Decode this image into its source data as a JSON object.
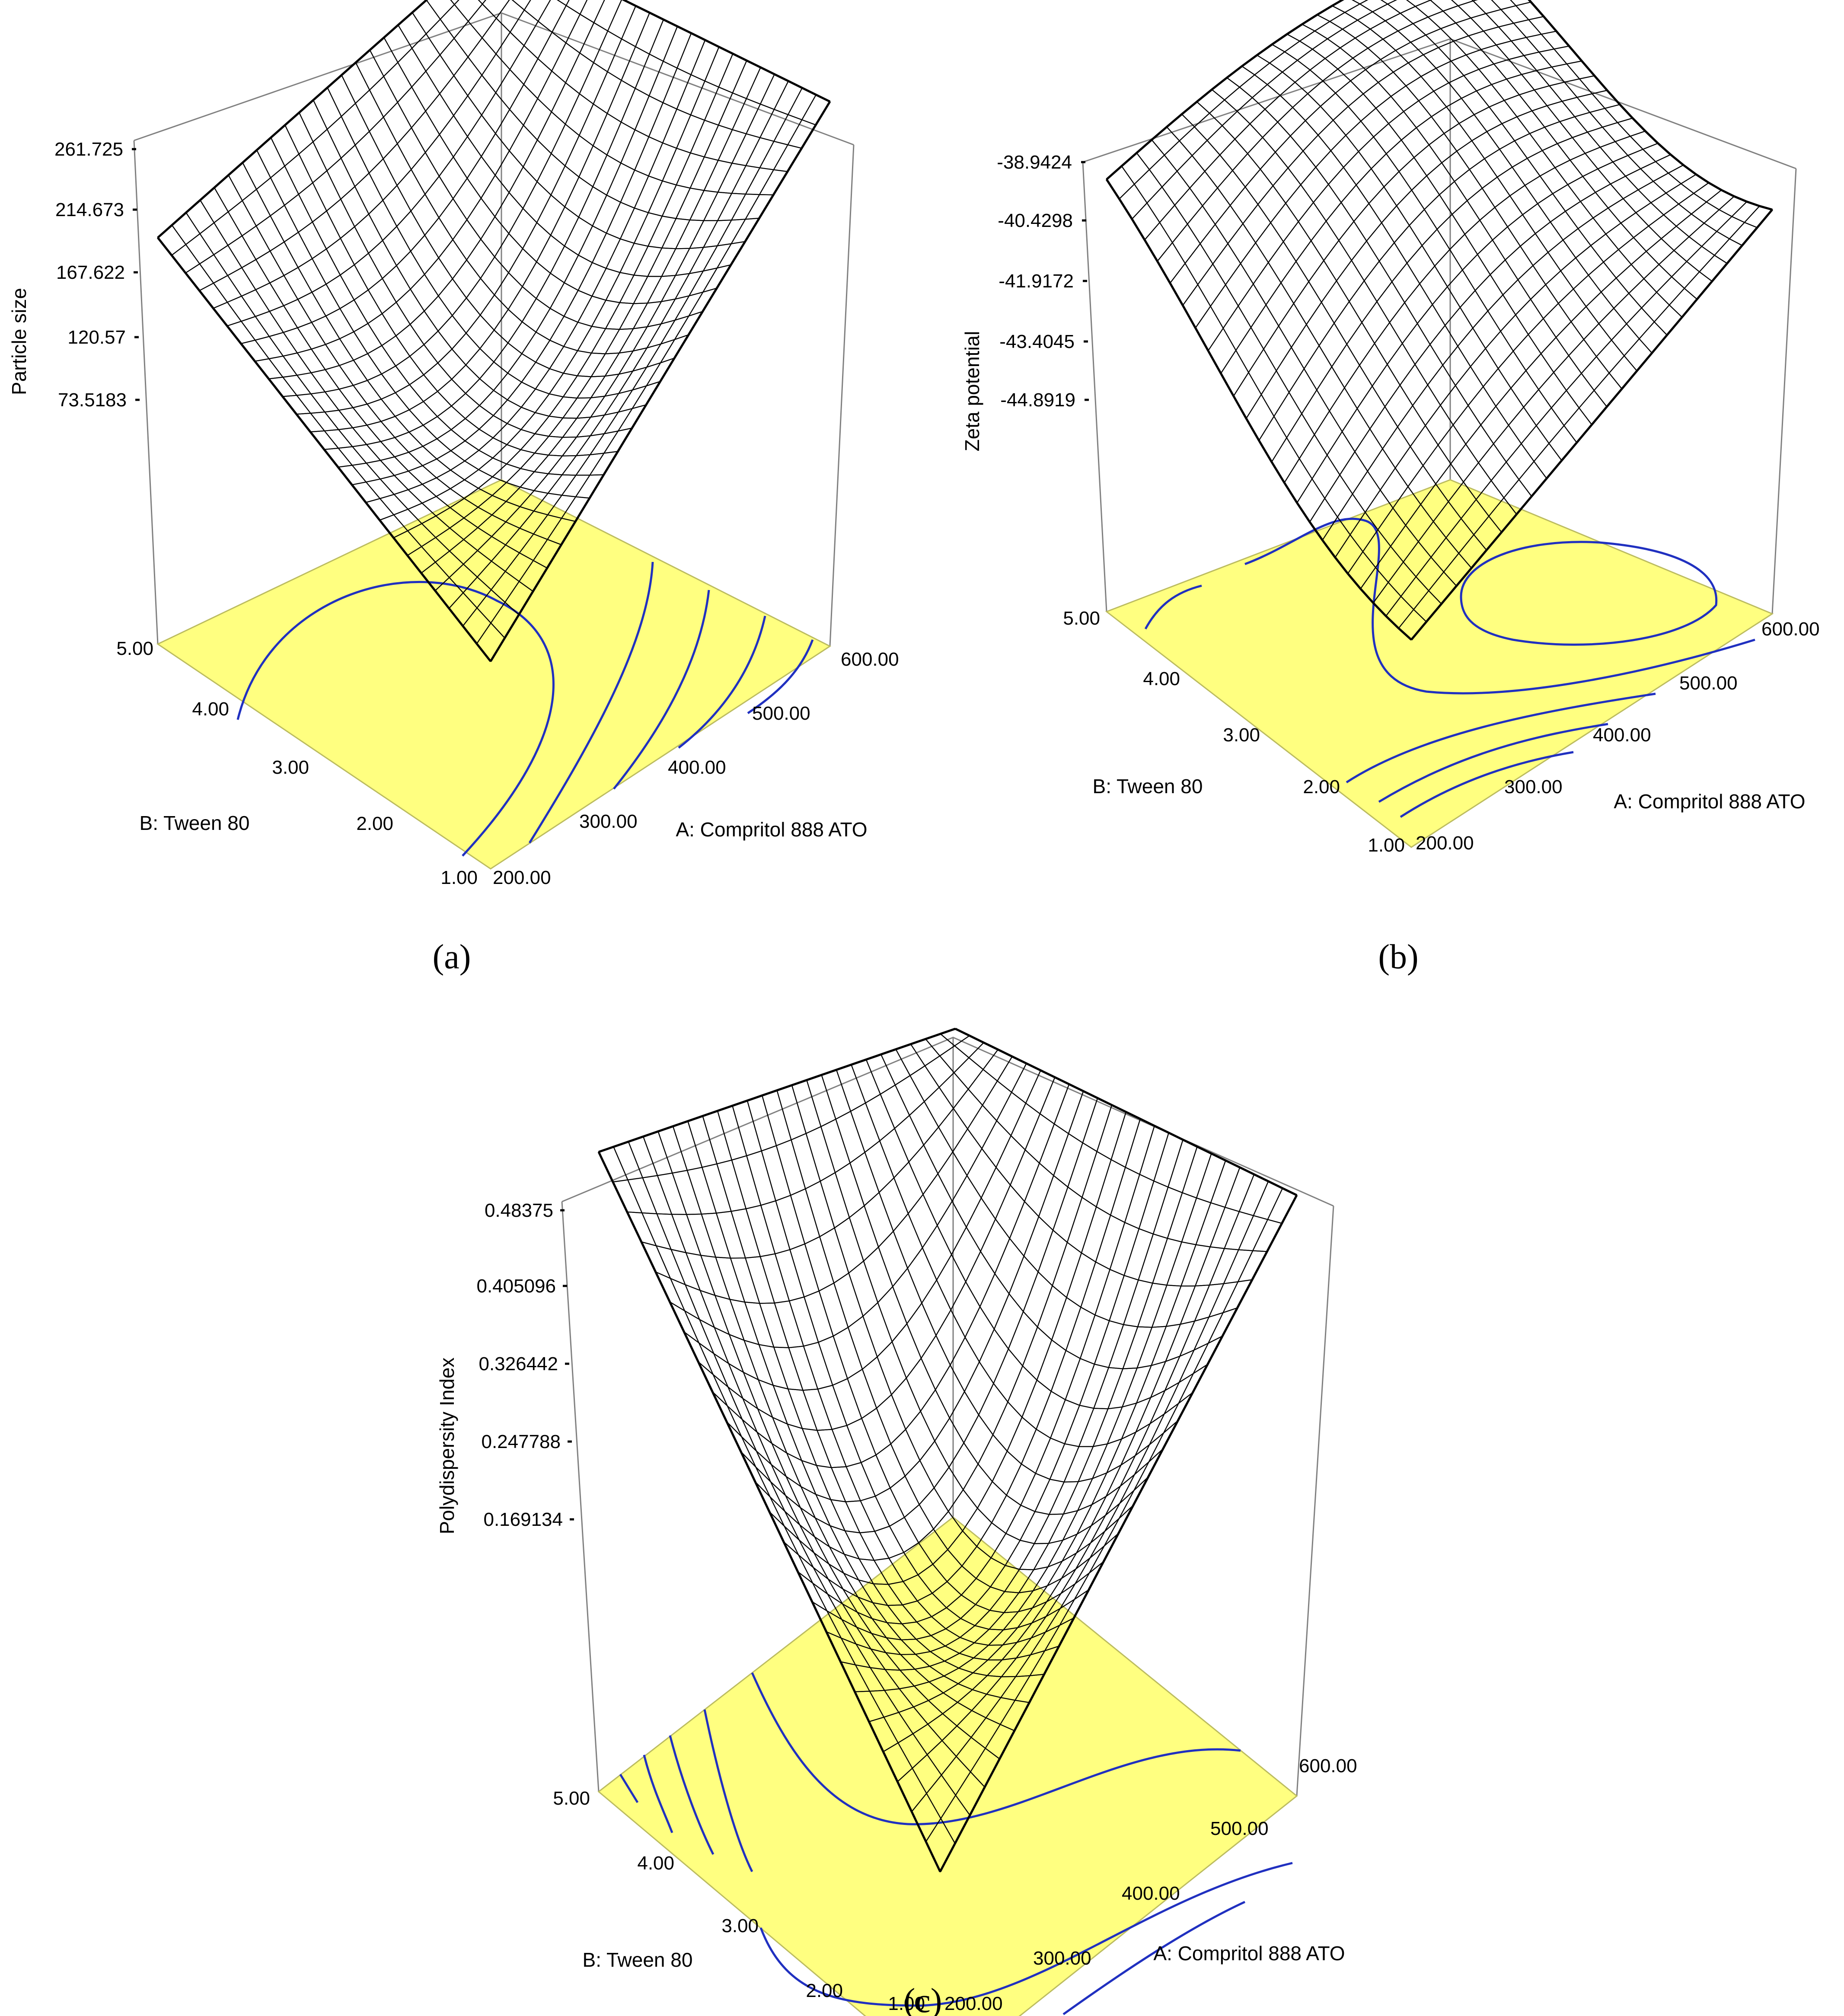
{
  "figure": {
    "panels": [
      {
        "label": "(a)"
      },
      {
        "label": "(b)"
      },
      {
        "label": "(c)"
      }
    ]
  },
  "chart_data": [
    {
      "type": "surface",
      "panel": "(a)",
      "zlabel": "Particle size",
      "xlabel": "A: Compritol 888 ATO",
      "ylabel": "B: Tween 80",
      "z_ticks": [
        "261.725",
        "214.673",
        "167.622",
        "120.57",
        "73.5183"
      ],
      "x_ticks": [
        "200.00",
        "300.00",
        "400.00",
        "500.00",
        "600.00"
      ],
      "y_ticks": [
        "1.00",
        "2.00",
        "3.00",
        "4.00",
        "5.00"
      ],
      "x_range": [
        200,
        600
      ],
      "y_range": [
        1,
        5
      ],
      "z_range": [
        26.47,
        261.725
      ],
      "contour_floor": true,
      "corner_values": {
        "x200_y1": 24,
        "x600_y1": 262,
        "x200_y5": 121,
        "x600_y5": 196
      }
    },
    {
      "type": "surface",
      "panel": "(b)",
      "zlabel": "Zeta potential",
      "xlabel": "A: Compritol 888 ATO",
      "ylabel": "B: Tween 80",
      "z_ticks": [
        "-38.9424",
        "-40.4298",
        "-41.9172",
        "-43.4045",
        "-44.8919"
      ],
      "x_ticks": [
        "200.00",
        "300.00",
        "400.00",
        "500.00",
        "600.00"
      ],
      "y_ticks": [
        "1.00",
        "2.00",
        "3.00",
        "4.00",
        "5.00"
      ],
      "x_range": [
        200,
        600
      ],
      "y_range": [
        1,
        5
      ],
      "z_range": [
        -46.38,
        -38.9424
      ],
      "contour_floor": true,
      "corner_values": {
        "x200_y1": -46.4,
        "x600_y1": -41.2,
        "x200_y5": -40.4,
        "x600_y5": -40.2
      }
    },
    {
      "type": "surface",
      "panel": "(c)",
      "zlabel": "Polydispersity Index",
      "xlabel": "A: Compritol 888 ATO",
      "ylabel": "B: Tween 80",
      "z_ticks": [
        "0.48375",
        "0.405096",
        "0.326442",
        "0.247788",
        "0.169134"
      ],
      "x_ticks": [
        "200.00",
        "300.00",
        "400.00",
        "500.00",
        "600.00"
      ],
      "y_ticks": [
        "1.00",
        "2.00",
        "3.00",
        "4.00",
        "5.00"
      ],
      "x_range": [
        200,
        600
      ],
      "y_range": [
        1,
        5
      ],
      "z_range": [
        0.09048,
        0.48375
      ],
      "contour_floor": true,
      "corner_values": {
        "x200_y1": 0.09,
        "x600_y1": 0.45,
        "x200_y5": 0.484,
        "x600_y5": 0.34
      }
    }
  ],
  "colors": {
    "floor": "#ffff80",
    "contour": "#2030c0",
    "surface_light": "#f4f4f4",
    "surface_dark": "#5a5a5a"
  }
}
